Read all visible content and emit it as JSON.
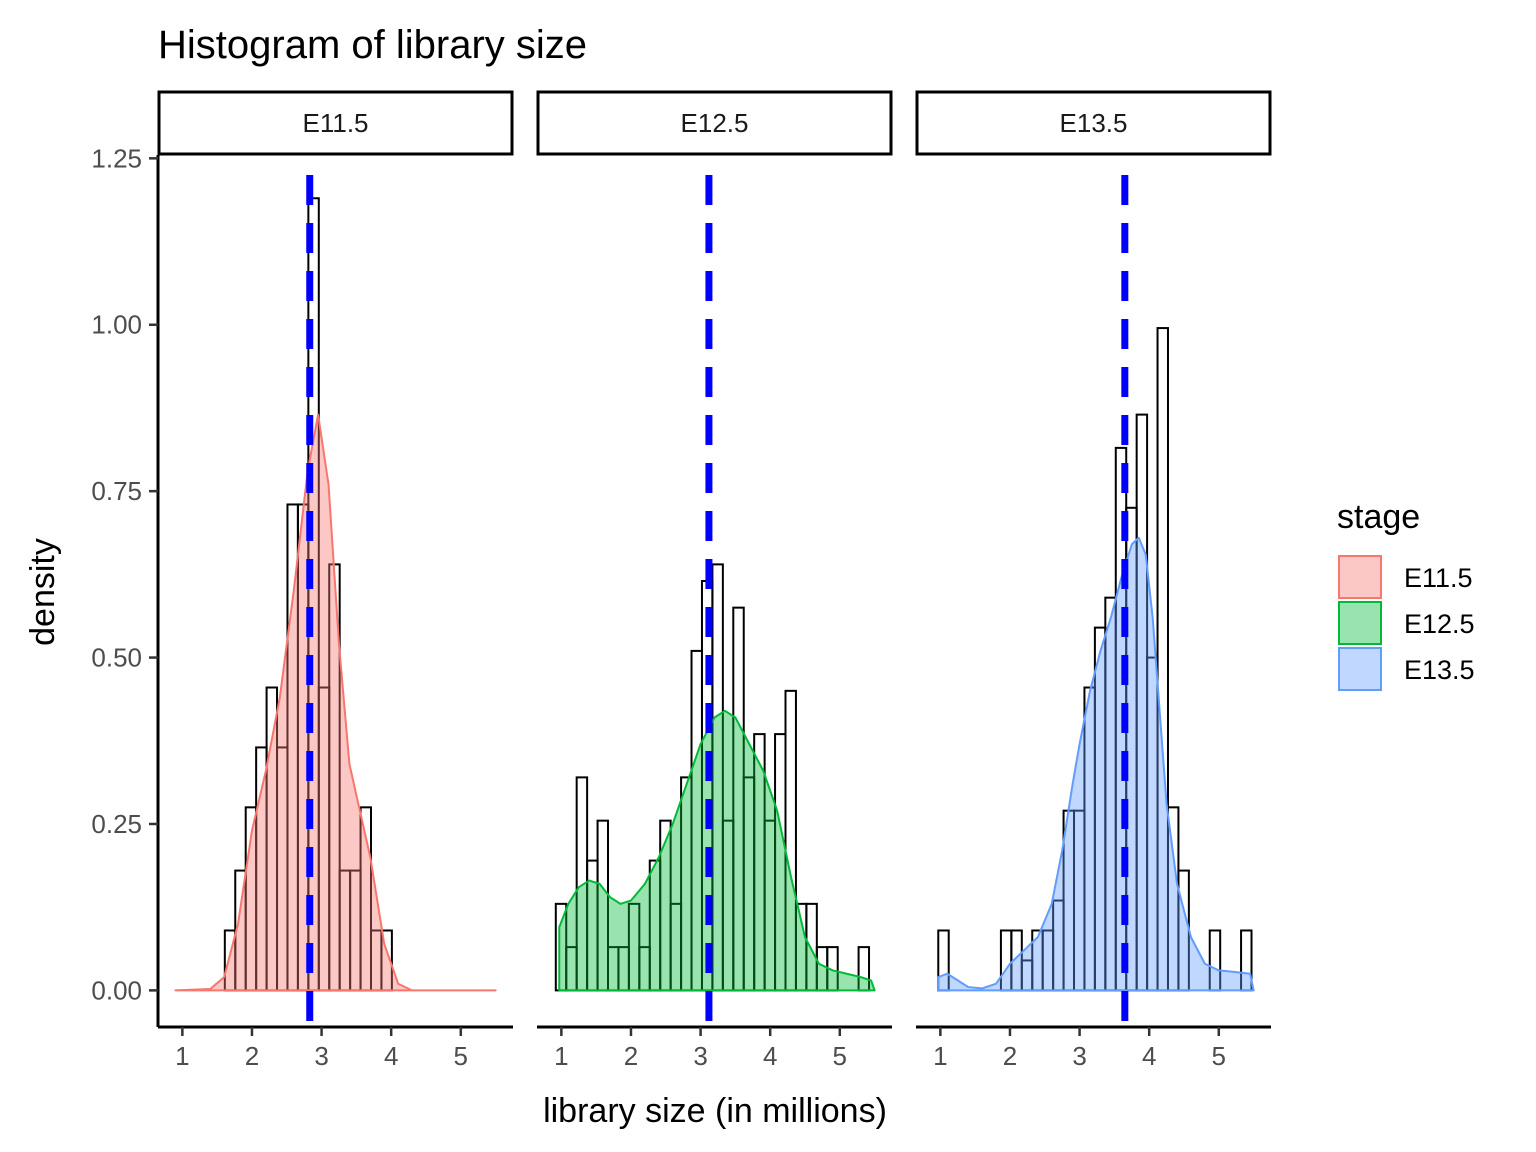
{
  "chart_data": {
    "type": "histogram",
    "title": "Histogram of library size",
    "xlabel": "library size (in millions)",
    "ylabel": "density",
    "xlim": [
      0.65,
      5.75
    ],
    "ylim": [
      -0.055,
      1.255
    ],
    "x_ticks": [
      1,
      2,
      3,
      4,
      5
    ],
    "x_tick_labels": [
      "1",
      "2",
      "3",
      "4",
      "5"
    ],
    "y_ticks": [
      0,
      0.25,
      0.5,
      0.75,
      1.0,
      1.25
    ],
    "y_tick_labels": [
      "0.00",
      "0.25",
      "0.50",
      "0.75",
      "1.00",
      "1.25"
    ],
    "bin_width": 0.15,
    "grid": false,
    "legend": {
      "title": "stage",
      "position": "right",
      "entries": [
        {
          "label": "E11.5",
          "fill": "#F8766D",
          "stroke": "#F8766D"
        },
        {
          "label": "E12.5",
          "fill": "#00BA38",
          "stroke": "#00BA38"
        },
        {
          "label": "E13.5",
          "fill": "#619CFF",
          "stroke": "#619CFF"
        }
      ]
    },
    "mean_line_color": "#0000FF",
    "panels": [
      {
        "label": "E11.5",
        "color": "#F8766D",
        "mean": 2.83,
        "density_range": [
          0.9,
          5.5
        ],
        "bins": [
          {
            "x0": 1.61,
            "y": 0.09
          },
          {
            "x0": 1.76,
            "y": 0.18
          },
          {
            "x0": 1.91,
            "y": 0.275
          },
          {
            "x0": 2.06,
            "y": 0.365
          },
          {
            "x0": 2.21,
            "y": 0.455
          },
          {
            "x0": 2.36,
            "y": 0.365
          },
          {
            "x0": 2.51,
            "y": 0.73
          },
          {
            "x0": 2.66,
            "y": 0.73
          },
          {
            "x0": 2.81,
            "y": 1.19
          },
          {
            "x0": 2.96,
            "y": 0.455
          },
          {
            "x0": 3.11,
            "y": 0.64
          },
          {
            "x0": 3.26,
            "y": 0.18
          },
          {
            "x0": 3.41,
            "y": 0.18
          },
          {
            "x0": 3.56,
            "y": 0.275
          },
          {
            "x0": 3.71,
            "y": 0.09
          },
          {
            "x0": 3.86,
            "y": 0.09
          }
        ],
        "density": [
          [
            0.9,
            0.0
          ],
          [
            1.4,
            0.002
          ],
          [
            1.6,
            0.02
          ],
          [
            1.8,
            0.1
          ],
          [
            2.0,
            0.24
          ],
          [
            2.2,
            0.33
          ],
          [
            2.4,
            0.44
          ],
          [
            2.6,
            0.6
          ],
          [
            2.8,
            0.78
          ],
          [
            2.95,
            0.865
          ],
          [
            3.1,
            0.76
          ],
          [
            3.25,
            0.52
          ],
          [
            3.4,
            0.34
          ],
          [
            3.55,
            0.27
          ],
          [
            3.7,
            0.2
          ],
          [
            3.9,
            0.07
          ],
          [
            4.1,
            0.01
          ],
          [
            4.3,
            0.0
          ],
          [
            5.5,
            0.0
          ]
        ]
      },
      {
        "label": "E12.5",
        "color": "#00BA38",
        "mean": 3.12,
        "density_range": [
          0.97,
          5.5
        ],
        "bins": [
          {
            "x0": 0.92,
            "y": 0.13
          },
          {
            "x0": 1.07,
            "y": 0.065
          },
          {
            "x0": 1.22,
            "y": 0.32
          },
          {
            "x0": 1.37,
            "y": 0.195
          },
          {
            "x0": 1.52,
            "y": 0.255
          },
          {
            "x0": 1.67,
            "y": 0.065
          },
          {
            "x0": 1.82,
            "y": 0.065
          },
          {
            "x0": 1.97,
            "y": 0.13
          },
          {
            "x0": 2.12,
            "y": 0.065
          },
          {
            "x0": 2.27,
            "y": 0.195
          },
          {
            "x0": 2.42,
            "y": 0.255
          },
          {
            "x0": 2.57,
            "y": 0.13
          },
          {
            "x0": 2.72,
            "y": 0.32
          },
          {
            "x0": 2.87,
            "y": 0.51
          },
          {
            "x0": 3.02,
            "y": 0.615
          },
          {
            "x0": 3.17,
            "y": 0.64
          },
          {
            "x0": 3.32,
            "y": 0.255
          },
          {
            "x0": 3.47,
            "y": 0.575
          },
          {
            "x0": 3.62,
            "y": 0.32
          },
          {
            "x0": 3.77,
            "y": 0.385
          },
          {
            "x0": 3.92,
            "y": 0.255
          },
          {
            "x0": 4.07,
            "y": 0.385
          },
          {
            "x0": 4.22,
            "y": 0.45
          },
          {
            "x0": 4.37,
            "y": 0.13
          },
          {
            "x0": 4.52,
            "y": 0.13
          },
          {
            "x0": 4.67,
            "y": 0.065
          },
          {
            "x0": 4.82,
            "y": 0.065
          },
          {
            "x0": 4.97,
            "y": 0.0
          },
          {
            "x0": 5.12,
            "y": 0.0
          },
          {
            "x0": 5.27,
            "y": 0.065
          }
        ],
        "density": [
          [
            0.97,
            0.095
          ],
          [
            1.1,
            0.13
          ],
          [
            1.25,
            0.155
          ],
          [
            1.4,
            0.165
          ],
          [
            1.55,
            0.16
          ],
          [
            1.7,
            0.14
          ],
          [
            1.85,
            0.13
          ],
          [
            2.0,
            0.135
          ],
          [
            2.2,
            0.16
          ],
          [
            2.4,
            0.2
          ],
          [
            2.6,
            0.25
          ],
          [
            2.8,
            0.31
          ],
          [
            3.0,
            0.37
          ],
          [
            3.2,
            0.41
          ],
          [
            3.35,
            0.42
          ],
          [
            3.5,
            0.41
          ],
          [
            3.7,
            0.37
          ],
          [
            3.9,
            0.33
          ],
          [
            4.1,
            0.27
          ],
          [
            4.3,
            0.17
          ],
          [
            4.5,
            0.08
          ],
          [
            4.7,
            0.04
          ],
          [
            4.9,
            0.03
          ],
          [
            5.1,
            0.025
          ],
          [
            5.3,
            0.02
          ],
          [
            5.45,
            0.015
          ],
          [
            5.5,
            0.0
          ]
        ]
      },
      {
        "label": "E13.5",
        "color": "#619CFF",
        "mean": 3.65,
        "density_range": [
          0.97,
          5.5
        ],
        "bins": [
          {
            "x0": 0.97,
            "y": 0.09
          },
          {
            "x0": 1.12,
            "y": 0.0
          },
          {
            "x0": 1.27,
            "y": 0.0
          },
          {
            "x0": 1.42,
            "y": 0.0
          },
          {
            "x0": 1.57,
            "y": 0.0
          },
          {
            "x0": 1.72,
            "y": 0.0
          },
          {
            "x0": 1.87,
            "y": 0.09
          },
          {
            "x0": 2.02,
            "y": 0.09
          },
          {
            "x0": 2.17,
            "y": 0.045
          },
          {
            "x0": 2.32,
            "y": 0.09
          },
          {
            "x0": 2.47,
            "y": 0.09
          },
          {
            "x0": 2.62,
            "y": 0.135
          },
          {
            "x0": 2.77,
            "y": 0.27
          },
          {
            "x0": 2.92,
            "y": 0.27
          },
          {
            "x0": 3.07,
            "y": 0.455
          },
          {
            "x0": 3.22,
            "y": 0.545
          },
          {
            "x0": 3.37,
            "y": 0.59
          },
          {
            "x0": 3.52,
            "y": 0.815
          },
          {
            "x0": 3.67,
            "y": 0.725
          },
          {
            "x0": 3.82,
            "y": 0.865
          },
          {
            "x0": 3.97,
            "y": 0.5
          },
          {
            "x0": 4.12,
            "y": 0.995
          },
          {
            "x0": 4.27,
            "y": 0.275
          },
          {
            "x0": 4.42,
            "y": 0.18
          },
          {
            "x0": 4.57,
            "y": 0.0
          },
          {
            "x0": 4.72,
            "y": 0.0
          },
          {
            "x0": 4.87,
            "y": 0.09
          },
          {
            "x0": 5.02,
            "y": 0.0
          },
          {
            "x0": 5.17,
            "y": 0.0
          },
          {
            "x0": 5.32,
            "y": 0.09
          }
        ],
        "density": [
          [
            0.97,
            0.02
          ],
          [
            1.1,
            0.025
          ],
          [
            1.25,
            0.015
          ],
          [
            1.4,
            0.005
          ],
          [
            1.6,
            0.003
          ],
          [
            1.8,
            0.01
          ],
          [
            2.0,
            0.04
          ],
          [
            2.2,
            0.06
          ],
          [
            2.4,
            0.08
          ],
          [
            2.6,
            0.13
          ],
          [
            2.75,
            0.21
          ],
          [
            2.9,
            0.31
          ],
          [
            3.0,
            0.37
          ],
          [
            3.15,
            0.45
          ],
          [
            3.3,
            0.51
          ],
          [
            3.45,
            0.56
          ],
          [
            3.6,
            0.62
          ],
          [
            3.75,
            0.67
          ],
          [
            3.85,
            0.68
          ],
          [
            3.95,
            0.655
          ],
          [
            4.05,
            0.56
          ],
          [
            4.15,
            0.42
          ],
          [
            4.25,
            0.28
          ],
          [
            4.4,
            0.16
          ],
          [
            4.6,
            0.08
          ],
          [
            4.8,
            0.04
          ],
          [
            5.0,
            0.03
          ],
          [
            5.2,
            0.028
          ],
          [
            5.45,
            0.025
          ],
          [
            5.5,
            0.0
          ]
        ]
      }
    ]
  }
}
